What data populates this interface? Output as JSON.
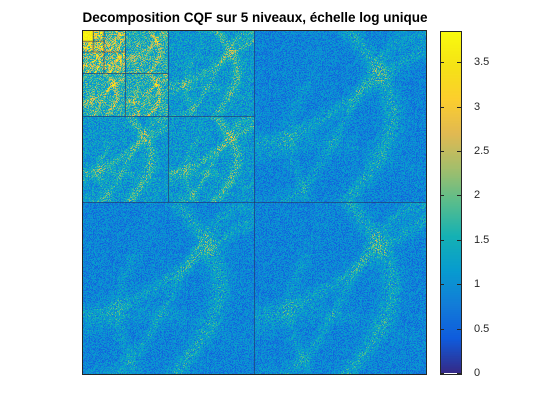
{
  "chart_data": {
    "type": "heatmap",
    "title": "Decomposition CQF sur 5 niveaux, échelle log unique",
    "xlabel": "",
    "ylabel": "",
    "colormap": "parula",
    "colorbar": {
      "range": [
        0,
        3.85
      ],
      "ticks": [
        0,
        0.5,
        1,
        1.5,
        2,
        2.5,
        3,
        3.5
      ],
      "tick_labels": [
        "0",
        "0.5",
        "1",
        "1.5",
        "2",
        "2.5",
        "3",
        "3.5"
      ]
    },
    "decomposition_levels": 5,
    "subband_mean_values": {
      "level_1_detail": 0.85,
      "level_2_detail": 1.1,
      "level_3_detail": 1.5,
      "level_4_detail": 1.9,
      "level_5_detail": 2.3,
      "approximation": 3.7
    }
  }
}
